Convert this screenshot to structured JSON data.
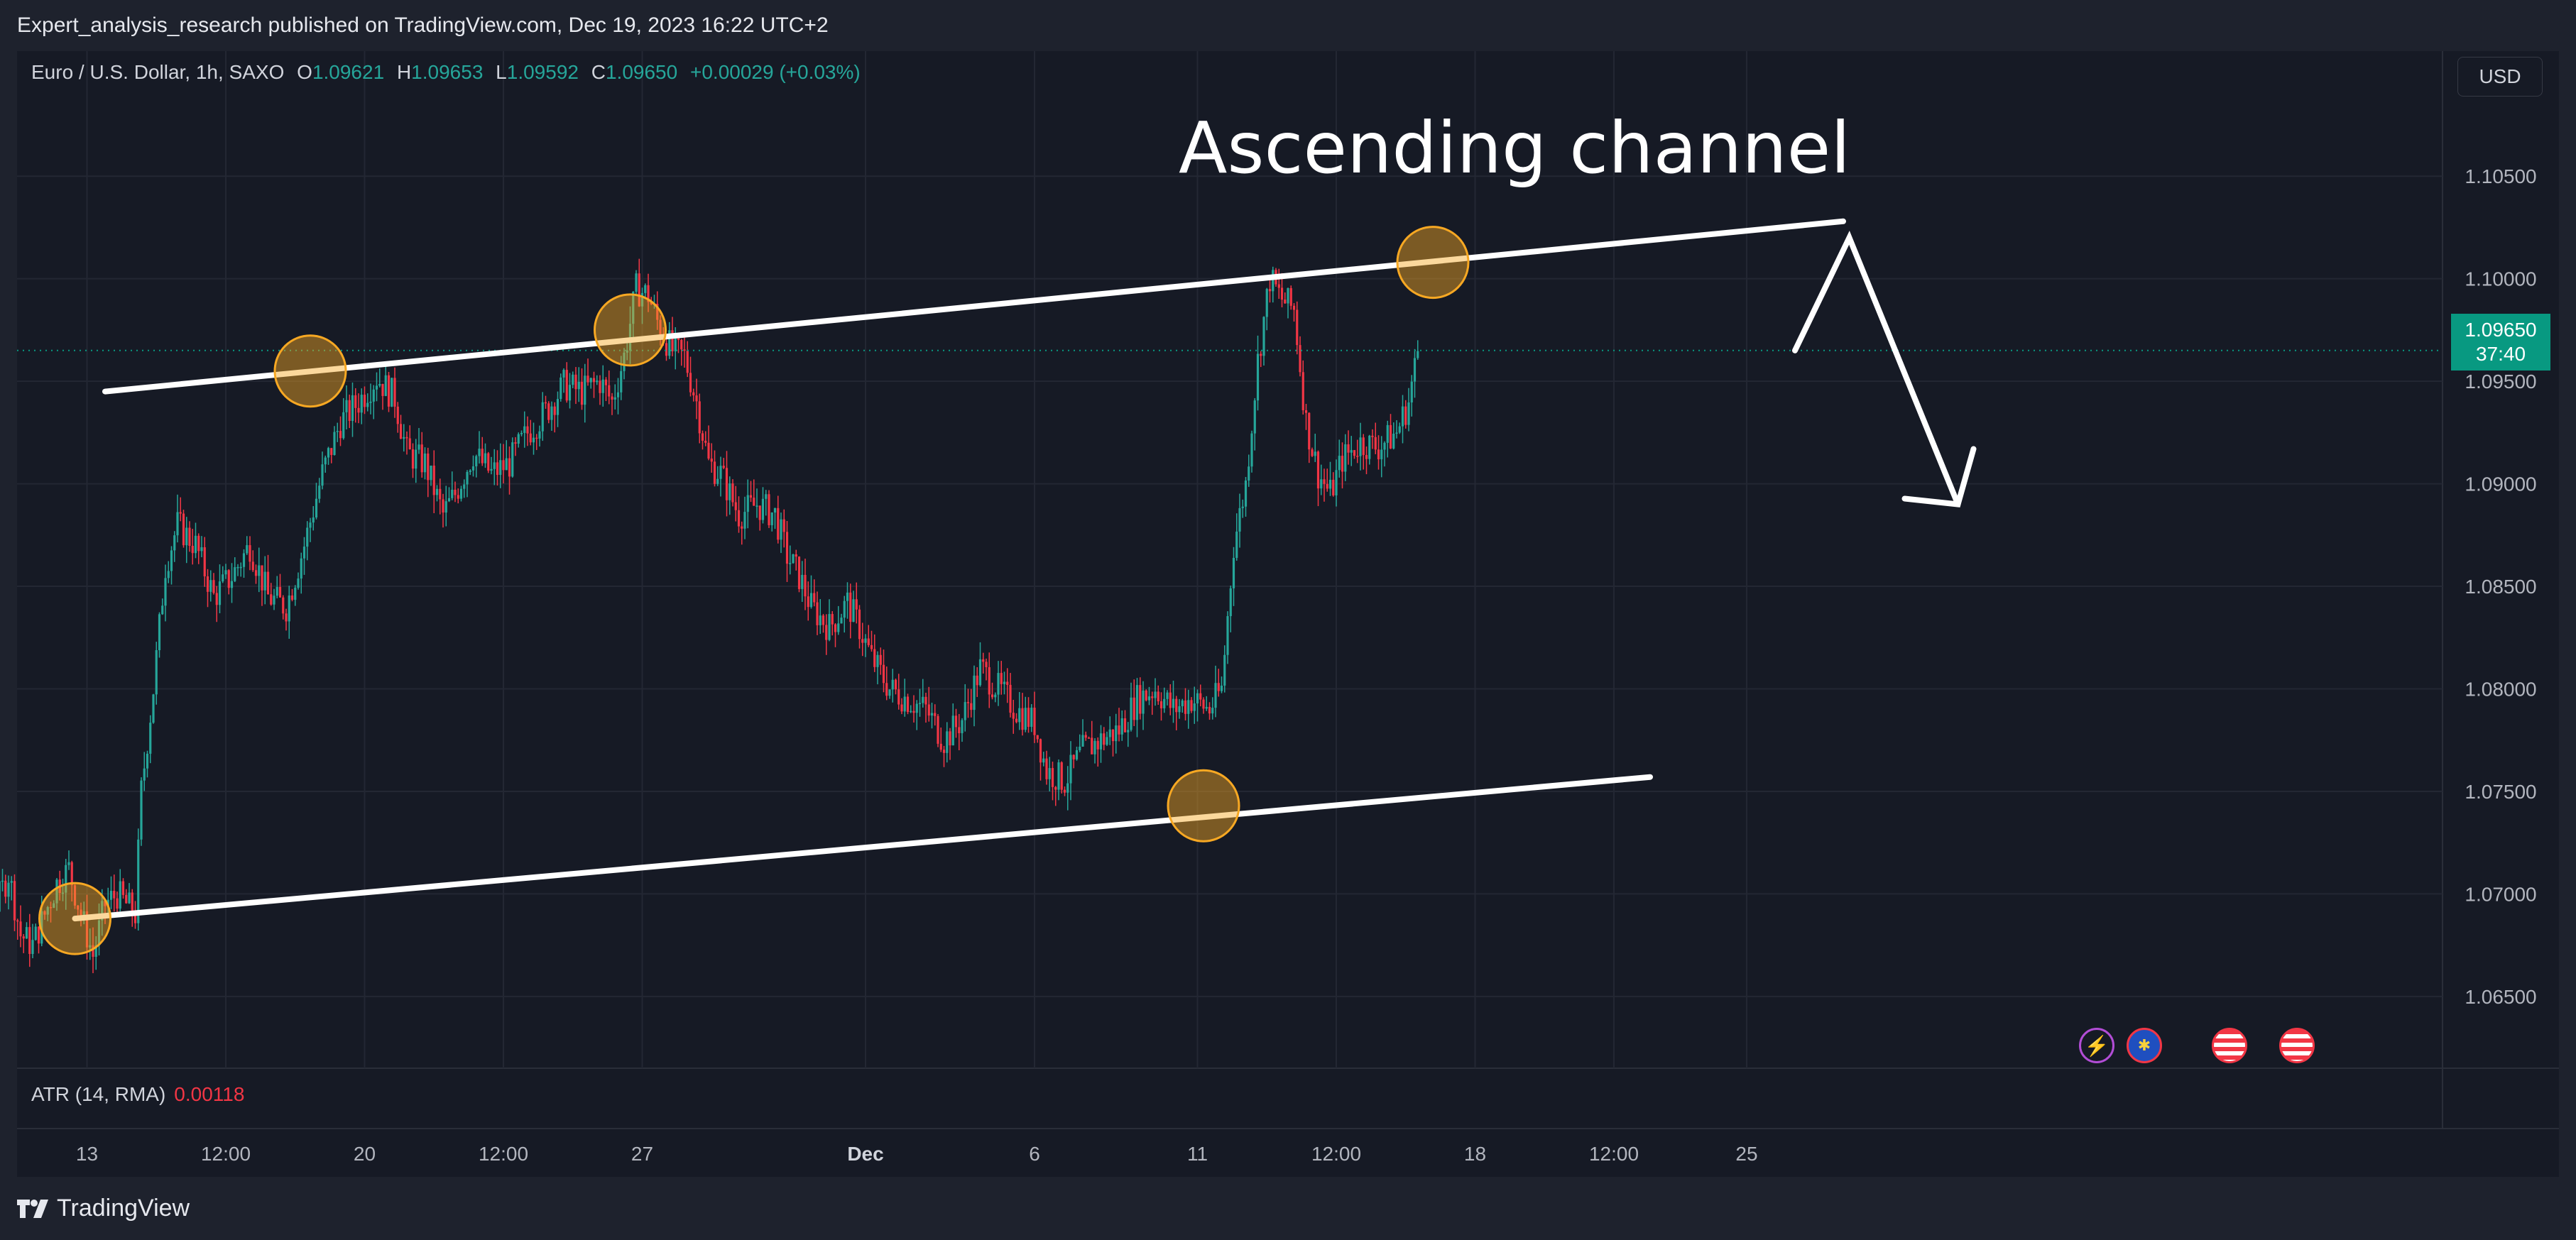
{
  "header": {
    "publisher_line": "Expert_analysis_research published on TradingView.com, Dec 19, 2023 16:22 UTC+2"
  },
  "legend": {
    "symbol": "Euro / U.S. Dollar, 1h, SAXO",
    "open_label": "O",
    "open": "1.09621",
    "high_label": "H",
    "high": "1.09653",
    "low_label": "L",
    "low": "1.09592",
    "close_label": "C",
    "close": "1.09650",
    "change": "+0.00029 (+0.03%)"
  },
  "currency_button": "USD",
  "annotation": {
    "title": "Ascending channel"
  },
  "price_label": {
    "price": "1.09650",
    "countdown": "37:40"
  },
  "indicator": {
    "name": "ATR (14, RMA)",
    "value": "0.00118"
  },
  "footer": {
    "brand": "TradingView"
  },
  "colors": {
    "background": "#161a25",
    "up": "#26a69a",
    "down": "#f23645",
    "channel": "#ffffff",
    "touch_circle": "#f7a823",
    "last_price": "#089981"
  },
  "event_icons": [
    "lightning-icon",
    "eu-flag-icon",
    "us-flag-icon",
    "us-flag-icon"
  ],
  "chart_data": {
    "type": "candlestick",
    "symbol": "EURUSD",
    "interval": "1h",
    "y_axis": {
      "ticks": [
        "1.06500",
        "1.07000",
        "1.07500",
        "1.08000",
        "1.08500",
        "1.09000",
        "1.09500",
        "1.10000",
        "1.10500"
      ],
      "ylim": [
        1.0615,
        1.1084
      ]
    },
    "x_axis": {
      "ticks": [
        "12:00",
        "13",
        "12:00",
        "20",
        "12:00",
        "27",
        "Dec",
        "6",
        "11",
        "12:00",
        "18",
        "12:00",
        "25"
      ],
      "tick_index": [
        -58,
        -35,
        -12,
        11,
        34,
        57,
        94,
        122,
        149,
        172,
        195,
        218,
        240
      ]
    },
    "series_path": [
      [
        0,
        1.0718
      ],
      [
        6,
        1.0685
      ],
      [
        12,
        1.0672
      ],
      [
        18,
        1.0708
      ],
      [
        24,
        1.0695
      ],
      [
        28,
        1.071
      ],
      [
        32,
        1.068
      ],
      [
        36,
        1.0675
      ],
      [
        40,
        1.069
      ],
      [
        44,
        1.0705
      ],
      [
        48,
        1.0712
      ],
      [
        52,
        1.069
      ],
      [
        56,
        1.067
      ],
      [
        60,
        1.0695
      ],
      [
        64,
        1.07
      ],
      [
        70,
        1.069
      ],
      [
        72,
        1.075
      ],
      [
        76,
        1.08
      ],
      [
        80,
        1.086
      ],
      [
        84,
        1.088
      ],
      [
        90,
        1.087
      ],
      [
        96,
        1.0845
      ],
      [
        102,
        1.0855
      ],
      [
        108,
        1.087
      ],
      [
        114,
        1.0845
      ],
      [
        120,
        1.084
      ],
      [
        126,
        1.087
      ],
      [
        132,
        1.0905
      ],
      [
        138,
        1.093
      ],
      [
        144,
        1.094
      ],
      [
        150,
        1.0952
      ],
      [
        156,
        1.0942
      ],
      [
        160,
        1.0915
      ],
      [
        166,
        1.091
      ],
      [
        172,
        1.0885
      ],
      [
        176,
        1.0895
      ],
      [
        182,
        1.0915
      ],
      [
        188,
        1.0905
      ],
      [
        194,
        1.091
      ],
      [
        200,
        1.0925
      ],
      [
        206,
        1.0935
      ],
      [
        212,
        1.0948
      ],
      [
        218,
        1.0945
      ],
      [
        224,
        1.095
      ],
      [
        228,
        1.094
      ],
      [
        232,
        1.0962
      ],
      [
        236,
        1.0995
      ],
      [
        240,
        1.0992
      ],
      [
        244,
        1.0975
      ],
      [
        248,
        1.0965
      ],
      [
        252,
        1.0962
      ],
      [
        256,
        1.094
      ],
      [
        260,
        1.091
      ],
      [
        264,
        1.0905
      ],
      [
        270,
        1.0885
      ],
      [
        276,
        1.089
      ],
      [
        282,
        1.0885
      ],
      [
        286,
        1.0865
      ],
      [
        290,
        1.0855
      ],
      [
        294,
        1.084
      ],
      [
        300,
        1.083
      ],
      [
        306,
        1.0842
      ],
      [
        310,
        1.083
      ],
      [
        314,
        1.0815
      ],
      [
        320,
        1.08
      ],
      [
        326,
        1.0795
      ],
      [
        332,
        1.079
      ],
      [
        338,
        1.0775
      ],
      [
        344,
        1.0785
      ],
      [
        350,
        1.081
      ],
      [
        356,
        1.08
      ],
      [
        362,
        1.079
      ],
      [
        368,
        1.0783
      ],
      [
        372,
        1.076
      ],
      [
        378,
        1.0755
      ],
      [
        384,
        1.077
      ],
      [
        390,
        1.0775
      ],
      [
        396,
        1.078
      ],
      [
        402,
        1.0795
      ],
      [
        408,
        1.08
      ],
      [
        414,
        1.079
      ],
      [
        420,
        1.0795
      ],
      [
        426,
        1.079
      ],
      [
        430,
        1.08
      ],
      [
        434,
        1.087
      ],
      [
        438,
        1.09
      ],
      [
        442,
        1.096
      ],
      [
        446,
        1.1
      ],
      [
        450,
        1.099
      ],
      [
        454,
        1.0985
      ],
      [
        458,
        1.093
      ],
      [
        462,
        1.0905
      ],
      [
        466,
        1.0895
      ],
      [
        470,
        1.0912
      ],
      [
        476,
        1.092
      ],
      [
        482,
        1.0918
      ],
      [
        488,
        1.0925
      ],
      [
        492,
        1.094
      ],
      [
        495,
        1.0965
      ]
    ],
    "series_path_index_scale": 0.5,
    "last_price": 1.0965,
    "drawings": {
      "channel_upper": [
        [
          -32,
          1.0945
        ],
        [
          256,
          1.1028
        ]
      ],
      "channel_lower": [
        [
          -37,
          1.0688
        ],
        [
          224,
          1.0757
        ]
      ],
      "touch_points": [
        [
          -37,
          1.0688
        ],
        [
          2,
          1.0955
        ],
        [
          55,
          1.0975
        ],
        [
          150,
          1.0743
        ],
        [
          188,
          1.1008
        ]
      ],
      "projection_arrow": [
        [
          248,
          1.0965
        ],
        [
          257,
          1.102
        ],
        [
          275,
          1.089
        ]
      ]
    }
  }
}
